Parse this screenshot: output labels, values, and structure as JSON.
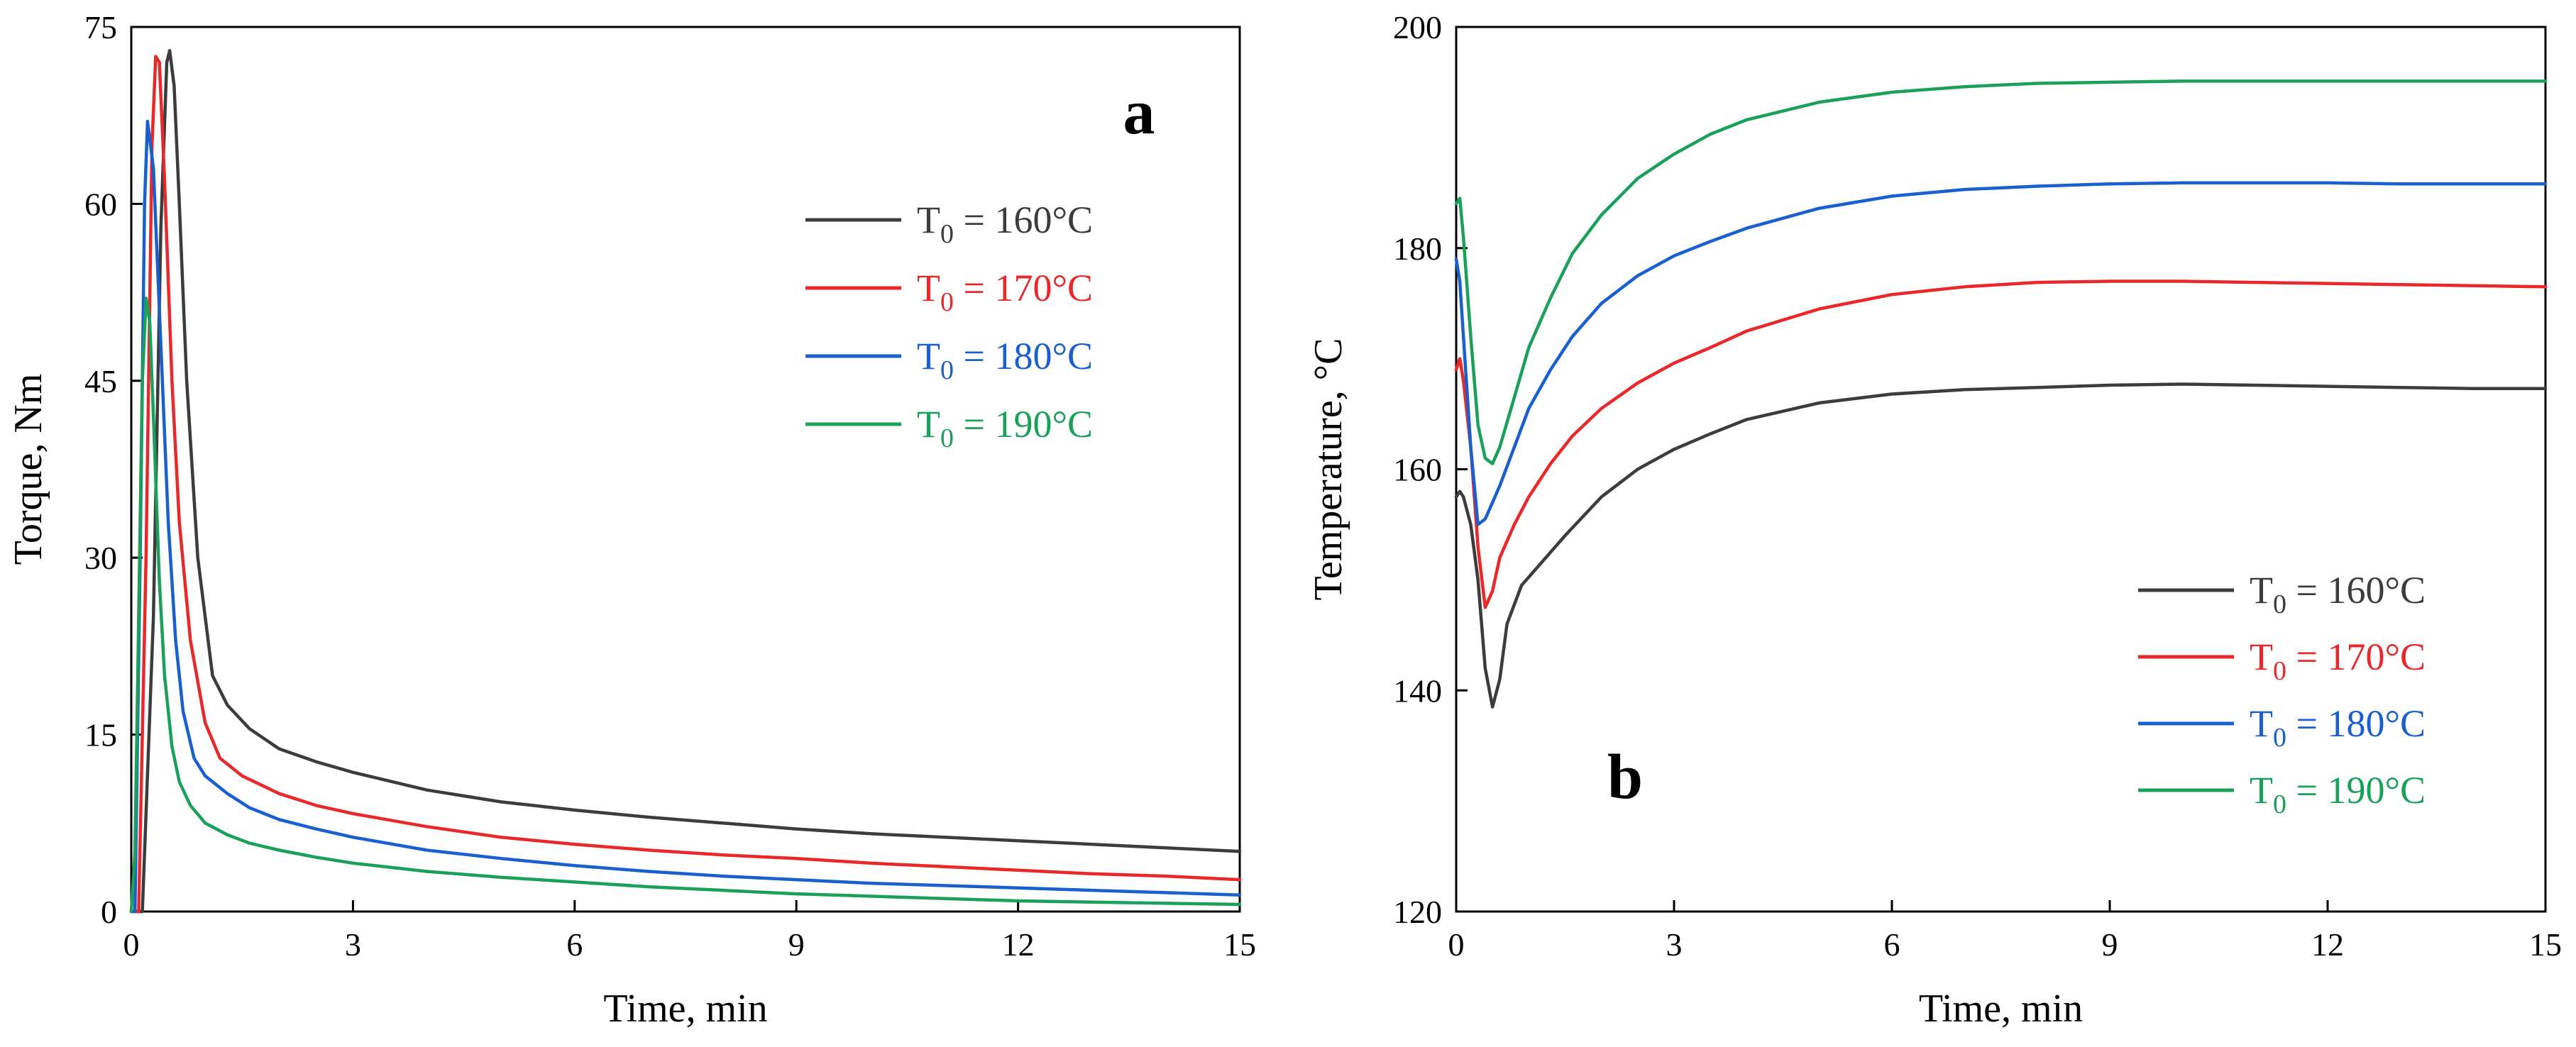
{
  "chart_data": [
    {
      "type": "line",
      "panel_label": "a",
      "xlabel": "Time, min",
      "ylabel": "Torque, Nm",
      "xlim": [
        0,
        15
      ],
      "ylim": [
        0,
        75
      ],
      "xticks": [
        0,
        3,
        6,
        9,
        12,
        15
      ],
      "yticks": [
        0,
        15,
        30,
        45,
        60,
        75
      ],
      "grid": false,
      "legend_position": "top-right",
      "series": [
        {
          "name": "T0 = 160°C",
          "legend": {
            "main": "T",
            "sub": "0",
            "rest": " = 160°C"
          },
          "color": "#3c3c3c",
          "x": [
            0,
            0.15,
            0.3,
            0.4,
            0.48,
            0.52,
            0.58,
            0.65,
            0.75,
            0.9,
            1.1,
            1.3,
            1.6,
            2,
            2.5,
            3,
            4,
            5,
            6,
            7,
            8,
            9,
            10,
            11,
            12,
            13,
            14,
            15
          ],
          "y": [
            0,
            0,
            25,
            58,
            72,
            73,
            70,
            60,
            45,
            30,
            20,
            17.5,
            15.5,
            13.8,
            12.7,
            11.8,
            10.3,
            9.3,
            8.6,
            8,
            7.5,
            7,
            6.6,
            6.3,
            6,
            5.7,
            5.4,
            5.1
          ]
        },
        {
          "name": "T0 = 170°C",
          "legend": {
            "main": "T",
            "sub": "0",
            "rest": " = 170°C"
          },
          "color": "#e8282a",
          "x": [
            0,
            0.1,
            0.2,
            0.28,
            0.33,
            0.38,
            0.45,
            0.55,
            0.65,
            0.8,
            1,
            1.2,
            1.5,
            2,
            2.5,
            3,
            4,
            5,
            6,
            7,
            8,
            9,
            10,
            11,
            12,
            13,
            14,
            15
          ],
          "y": [
            0,
            0,
            30,
            65,
            72.5,
            72,
            62,
            45,
            33,
            23,
            16,
            13,
            11.5,
            10,
            9,
            8.3,
            7.2,
            6.3,
            5.7,
            5.2,
            4.8,
            4.5,
            4.1,
            3.8,
            3.5,
            3.2,
            3,
            2.7
          ]
        },
        {
          "name": "T0 = 180°C",
          "legend": {
            "main": "T",
            "sub": "0",
            "rest": " = 180°C"
          },
          "color": "#1a5fd0",
          "x": [
            0,
            0.05,
            0.12,
            0.18,
            0.22,
            0.3,
            0.4,
            0.5,
            0.6,
            0.7,
            0.85,
            1,
            1.3,
            1.6,
            2,
            2.5,
            3,
            4,
            5,
            6,
            7,
            8,
            9,
            10,
            11,
            12,
            13,
            14,
            15
          ],
          "y": [
            0,
            0,
            30,
            60,
            67,
            63,
            48,
            33,
            23,
            17,
            13,
            11.5,
            10,
            8.8,
            7.8,
            7,
            6.3,
            5.2,
            4.5,
            3.9,
            3.4,
            3,
            2.7,
            2.4,
            2.2,
            2,
            1.8,
            1.6,
            1.4
          ]
        },
        {
          "name": "T0 = 190°C",
          "legend": {
            "main": "T",
            "sub": "0",
            "rest": " = 190°C"
          },
          "color": "#1aa05a",
          "x": [
            0,
            0.05,
            0.1,
            0.15,
            0.2,
            0.25,
            0.3,
            0.38,
            0.45,
            0.55,
            0.65,
            0.8,
            1,
            1.3,
            1.6,
            2,
            2.5,
            3,
            4,
            5,
            6,
            7,
            8,
            9,
            10,
            11,
            12,
            13,
            14,
            15
          ],
          "y": [
            0,
            5,
            25,
            45,
            52,
            50,
            42,
            28,
            20,
            14,
            11,
            9,
            7.5,
            6.5,
            5.8,
            5.2,
            4.6,
            4.1,
            3.4,
            2.9,
            2.5,
            2.1,
            1.8,
            1.5,
            1.3,
            1.1,
            0.9,
            0.8,
            0.7,
            0.6
          ]
        }
      ]
    },
    {
      "type": "line",
      "panel_label": "b",
      "xlabel": "Time, min",
      "ylabel": "Temperature, °C",
      "xlim": [
        0,
        15
      ],
      "ylim": [
        120,
        200
      ],
      "xticks": [
        0,
        3,
        6,
        9,
        12,
        15
      ],
      "yticks": [
        120,
        140,
        160,
        180,
        200
      ],
      "grid": false,
      "legend_position": "bottom-right",
      "series": [
        {
          "name": "T0 = 160°C",
          "legend": {
            "main": "T",
            "sub": "0",
            "rest": " = 160°C"
          },
          "color": "#3c3c3c",
          "x": [
            0,
            0.05,
            0.1,
            0.2,
            0.3,
            0.4,
            0.5,
            0.6,
            0.7,
            0.9,
            1.1,
            1.5,
            2,
            2.5,
            3,
            3.5,
            4,
            5,
            6,
            7,
            8,
            9,
            10,
            11,
            12,
            13,
            14,
            15
          ],
          "y": [
            157.5,
            158,
            157.5,
            155,
            150,
            142,
            138.5,
            141,
            146,
            149.5,
            151,
            154,
            157.5,
            160,
            161.8,
            163.2,
            164.5,
            166,
            166.8,
            167.2,
            167.4,
            167.6,
            167.7,
            167.6,
            167.5,
            167.4,
            167.3,
            167.3
          ]
        },
        {
          "name": "T0 = 170°C",
          "legend": {
            "main": "T",
            "sub": "0",
            "rest": " = 170°C"
          },
          "color": "#e8282a",
          "x": [
            0,
            0.05,
            0.1,
            0.2,
            0.3,
            0.4,
            0.5,
            0.6,
            0.8,
            1,
            1.3,
            1.6,
            2,
            2.5,
            3,
            3.5,
            4,
            5,
            6,
            7,
            8,
            9,
            10,
            11,
            12,
            13,
            14,
            15
          ],
          "y": [
            169,
            170,
            168,
            162,
            153,
            147.5,
            149,
            152,
            155,
            157.5,
            160.5,
            163,
            165.5,
            167.8,
            169.6,
            171,
            172.5,
            174.5,
            175.8,
            176.5,
            176.9,
            177,
            177,
            176.9,
            176.8,
            176.7,
            176.6,
            176.5
          ]
        },
        {
          "name": "T0 = 180°C",
          "legend": {
            "main": "T",
            "sub": "0",
            "rest": " = 180°C"
          },
          "color": "#1a5fd0",
          "x": [
            0,
            0.05,
            0.1,
            0.2,
            0.3,
            0.4,
            0.5,
            0.6,
            0.8,
            1,
            1.3,
            1.6,
            2,
            2.5,
            3,
            3.5,
            4,
            5,
            6,
            7,
            8,
            9,
            10,
            11,
            12,
            13,
            14,
            15
          ],
          "y": [
            179,
            177,
            172,
            162,
            155,
            155.5,
            157,
            158.5,
            162,
            165.5,
            169,
            172,
            175,
            177.5,
            179.3,
            180.6,
            181.8,
            183.6,
            184.7,
            185.3,
            185.6,
            185.8,
            185.9,
            185.9,
            185.9,
            185.8,
            185.8,
            185.8
          ]
        },
        {
          "name": "T0 = 190°C",
          "legend": {
            "main": "T",
            "sub": "0",
            "rest": " = 190°C"
          },
          "color": "#1aa05a",
          "x": [
            0,
            0.05,
            0.1,
            0.2,
            0.3,
            0.4,
            0.5,
            0.6,
            0.8,
            1,
            1.3,
            1.6,
            2,
            2.5,
            3,
            3.5,
            4,
            5,
            6,
            7,
            8,
            9,
            10,
            11,
            12,
            13,
            14,
            15
          ],
          "y": [
            184,
            184.5,
            181,
            172,
            164,
            161,
            160.5,
            162,
            166.5,
            171,
            175.5,
            179.5,
            183,
            186.3,
            188.5,
            190.3,
            191.6,
            193.2,
            194.1,
            194.6,
            194.9,
            195,
            195.1,
            195.1,
            195.1,
            195.1,
            195.1,
            195.1
          ]
        }
      ]
    }
  ]
}
